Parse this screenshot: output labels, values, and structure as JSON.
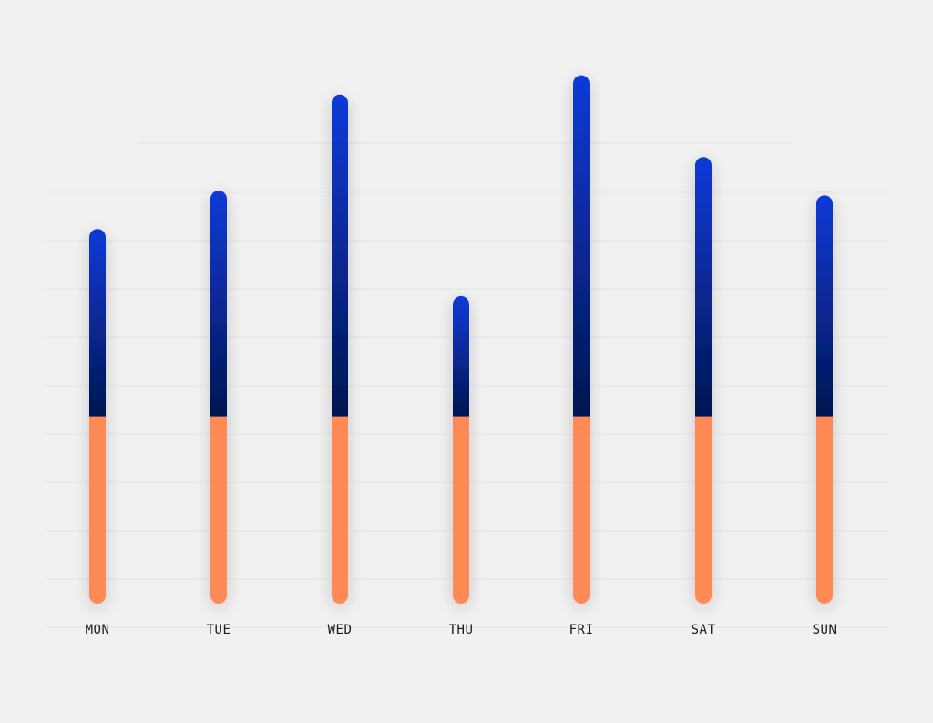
{
  "chart_data": {
    "type": "bar",
    "stacked": true,
    "categories": [
      "MON",
      "TUE",
      "WED",
      "THU",
      "FRI",
      "SAT",
      "SUN"
    ],
    "series": [
      {
        "values": [
          39,
          39,
          39,
          39,
          39,
          39,
          39
        ],
        "color": "#ff8a55"
      },
      {
        "values": [
          39,
          47,
          67,
          25,
          71,
          54,
          46
        ],
        "gradient": [
          "#041650",
          "#0b3ad8"
        ]
      }
    ],
    "ylim": [
      0,
      120
    ],
    "grid": true,
    "legend": "none"
  }
}
